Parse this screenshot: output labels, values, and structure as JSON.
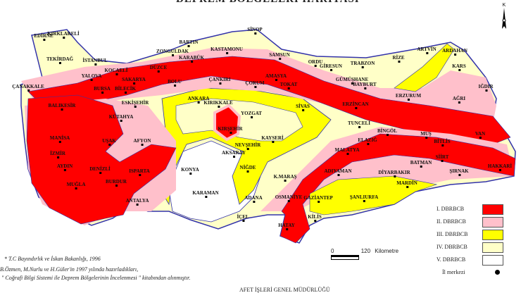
{
  "title": "DEPREM BÖLGELERİ HARİTASI",
  "compass": {
    "label": "K"
  },
  "colors": {
    "zone1": "#ff0000",
    "zone2": "#ffc0cb",
    "zone3": "#ffff00",
    "zone4": "#ffffc8",
    "zone5": "#ffffff",
    "border": "#3333aa"
  },
  "legend": [
    {
      "label": "I. DBRBCB",
      "color": "#ff0000"
    },
    {
      "label": "II. DBRBCB",
      "color": "#ffc0cb"
    },
    {
      "label": "III. DBRBCB",
      "color": "#ffff00"
    },
    {
      "label": "IV. DBRBCB",
      "color": "#ffffc8"
    },
    {
      "label": "V. DBRBCB",
      "color": "#ffffff"
    }
  ],
  "legend_center": {
    "label": "İl merkezi"
  },
  "scale": {
    "zero": "0",
    "max": "120",
    "unit": "Kilometre"
  },
  "notes": [
    "* T.C Bayındırlık ve İskan Bakanlığı, 1996",
    "B.Özmen, M.Nurlu ve H.Güler'in 1997 yılında hazırladıkları,",
    "\" Coğrafi Bilgi Sistemi ile Deprem Bölgelerinin İncelenmesi \" kitabından alınmıştır."
  ],
  "footer": "AFET İŞLERİ GENEL MÜDÜRLÜĞÜ",
  "cities": [
    "EDİRNE",
    "KIRKLARELİ",
    "TEKİRDAĞ",
    "İSTANBUL",
    "YALOVA",
    "KOCAELİ",
    "SAKARYA",
    "DÜZCE",
    "BOLU",
    "ZONGULDAK",
    "BARTIN",
    "KARABÜK",
    "KASTAMONU",
    "ÇANKIRI",
    "ÇORUM",
    "ÇANAKKALE",
    "BURSA",
    "BİLECİK",
    "ESKİŞEHİR",
    "KÜTAHYA",
    "ANKARA",
    "KIRIKKALE",
    "KIRŞEHİR",
    "YOZGAT",
    "SİNOP",
    "SAMSUN",
    "AMASYA",
    "TOKAT",
    "ORDU",
    "GİRESUN",
    "TRABZON",
    "RİZE",
    "ARTVİN",
    "ARDAHAN",
    "KARS",
    "GÜMÜŞHANE",
    "BAYBURT",
    "ERZURUM",
    "AĞRI",
    "IĞDIR",
    "SİVAS",
    "ERZİNCAN",
    "TUNCELİ",
    "BİNGÖL",
    "MUŞ",
    "BİTLİS",
    "VAN",
    "BALIKESİR",
    "MANİSA",
    "İZMİR",
    "AYDIN",
    "UŞAK",
    "AFYON",
    "DENİZLİ",
    "MUĞLA",
    "ISPARTA",
    "BURDUR",
    "ANTALYA",
    "KONYA",
    "KARAMAN",
    "AKSARAY",
    "NEVŞEHİR",
    "KAYSERİ",
    "NİĞDE",
    "ADANA",
    "İÇEL",
    "OSMANİYE",
    "K.MARAŞ",
    "GAZİANTEP",
    "KİLİS",
    "HATAY",
    "ADIYAMAN",
    "MALATYA",
    "ELAZIĞ",
    "ŞANLIURFA",
    "DİYARBAKIR",
    "BATMAN",
    "MARDİN",
    "SİİRT",
    "ŞIRNAK",
    "HAKKARİ"
  ]
}
